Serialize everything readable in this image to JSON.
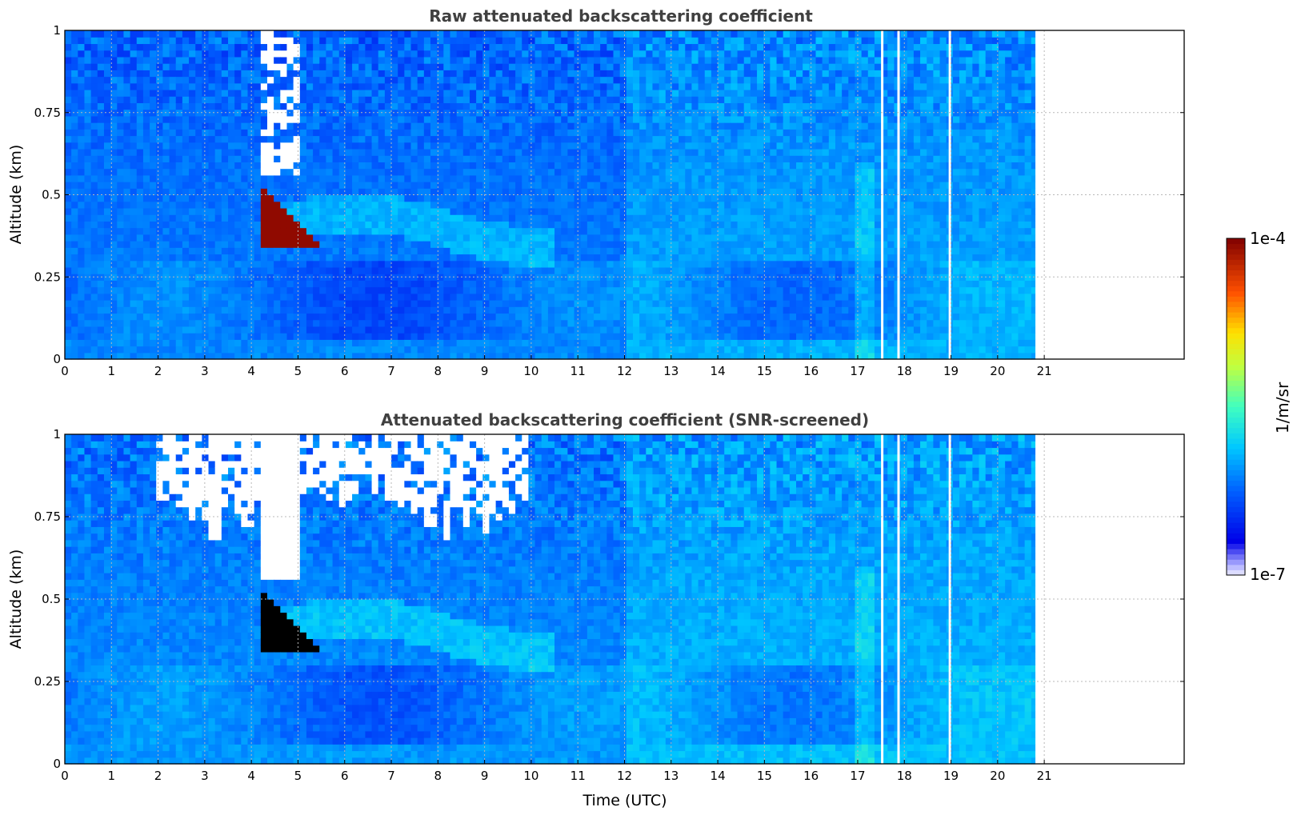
{
  "chart_data": [
    {
      "type": "heatmap",
      "title": "Raw attenuated backscattering coefficient",
      "xlabel": "",
      "ylabel": "Altitude (km)",
      "xlim": [
        0,
        24
      ],
      "ylim": [
        0,
        1
      ],
      "x_ticks": [
        "0",
        "1",
        "2",
        "3",
        "4",
        "5",
        "6",
        "7",
        "8",
        "9",
        "10",
        "11",
        "12",
        "13",
        "14",
        "15",
        "16",
        "17",
        "18",
        "19",
        "20",
        "21"
      ],
      "y_ticks": [
        "0",
        "0.25",
        "0.5",
        "0.75",
        "1"
      ],
      "data_end_hour": 20.8,
      "grid": true,
      "screened": false,
      "features": [
        {
          "name": "elevated aerosol layer",
          "time": [
            4.2,
            5.4
          ],
          "altitude": [
            0.35,
            0.52
          ],
          "level": "1e-4 (saturated)"
        },
        {
          "name": "boundary layer top",
          "time": [
            4.5,
            9.5
          ],
          "altitude": [
            0.3,
            0.45
          ]
        },
        {
          "name": "data gaps",
          "times": [
            17.5,
            17.85,
            18.95
          ]
        }
      ]
    },
    {
      "type": "heatmap",
      "title": "Attenuated backscattering coefficient (SNR-screened)",
      "xlabel": "Time (UTC)",
      "ylabel": "Altitude (km)",
      "xlim": [
        0,
        24
      ],
      "ylim": [
        0,
        1
      ],
      "x_ticks": [
        "0",
        "1",
        "2",
        "3",
        "4",
        "5",
        "6",
        "7",
        "8",
        "9",
        "10",
        "11",
        "12",
        "13",
        "14",
        "15",
        "16",
        "17",
        "18",
        "19",
        "20",
        "21"
      ],
      "y_ticks": [
        "0",
        "0.25",
        "0.5",
        "0.75",
        "1"
      ],
      "data_end_hour": 20.8,
      "grid": true,
      "screened": true,
      "features": [
        {
          "name": "elevated aerosol layer",
          "time": [
            4.2,
            5.4
          ],
          "altitude": [
            0.35,
            0.52
          ],
          "level": "above scale (black)"
        },
        {
          "name": "screened low-SNR region",
          "time": [
            2.0,
            10.0
          ],
          "altitude": [
            0.75,
            1.0
          ]
        },
        {
          "name": "data gaps",
          "times": [
            17.5,
            17.85,
            18.95
          ]
        }
      ]
    }
  ],
  "colorbar": {
    "label": "1/m/sr",
    "max_label": "1e-4",
    "min_label": "1e-7",
    "scale": "log",
    "range": [
      1e-07,
      0.0001
    ],
    "colormap": "jet"
  }
}
